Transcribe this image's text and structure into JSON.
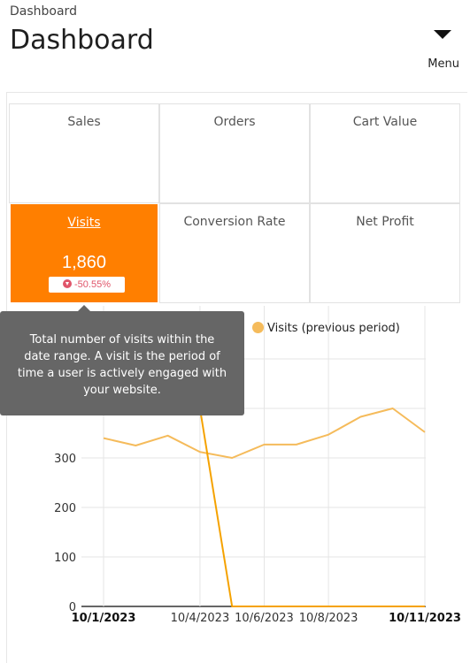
{
  "header": {
    "breadcrumb": "Dashboard",
    "title": "Dashboard",
    "menu_label": "Menu"
  },
  "tiles": [
    {
      "label": "Sales"
    },
    {
      "label": "Orders"
    },
    {
      "label": "Cart Value"
    },
    {
      "label": "Visits",
      "value": "1,860",
      "change": "-50.55%",
      "active": true
    },
    {
      "label": "Conversion Rate"
    },
    {
      "label": "Net Profit"
    }
  ],
  "tooltip": {
    "text": "Total number of visits within the date range. A visit is the period of time a user is actively engaged with your website."
  },
  "legend": {
    "label": "Visits (previous period)"
  },
  "colors": {
    "accent": "#ff7f00",
    "current": "#f5a200",
    "previous": "#f5bb5b",
    "negative": "#e0556a"
  },
  "chart_data": {
    "type": "line",
    "x": [
      "10/1/2023",
      "10/2/2023",
      "10/3/2023",
      "10/4/2023",
      "10/5/2023",
      "10/6/2023",
      "10/7/2023",
      "10/8/2023",
      "10/9/2023",
      "10/10/2023",
      "10/11/2023"
    ],
    "x_tick_labels": [
      "10/1/2023",
      "10/4/2023",
      "10/6/2023",
      "10/8/2023",
      "10/11/2023"
    ],
    "y_tick_labels": [
      "0",
      "100",
      "200",
      "300"
    ],
    "ylim": [
      0,
      500
    ],
    "series": [
      {
        "name": "",
        "color": "#f5a200",
        "values": [
          null,
          null,
          null,
          400,
          0,
          0,
          0,
          0,
          0,
          0,
          0
        ]
      },
      {
        "name": "Visits (previous period)",
        "color": "#f5bb5b",
        "values": [
          340,
          325,
          345,
          312,
          300,
          327,
          327,
          347,
          383,
          400,
          352
        ]
      }
    ]
  }
}
